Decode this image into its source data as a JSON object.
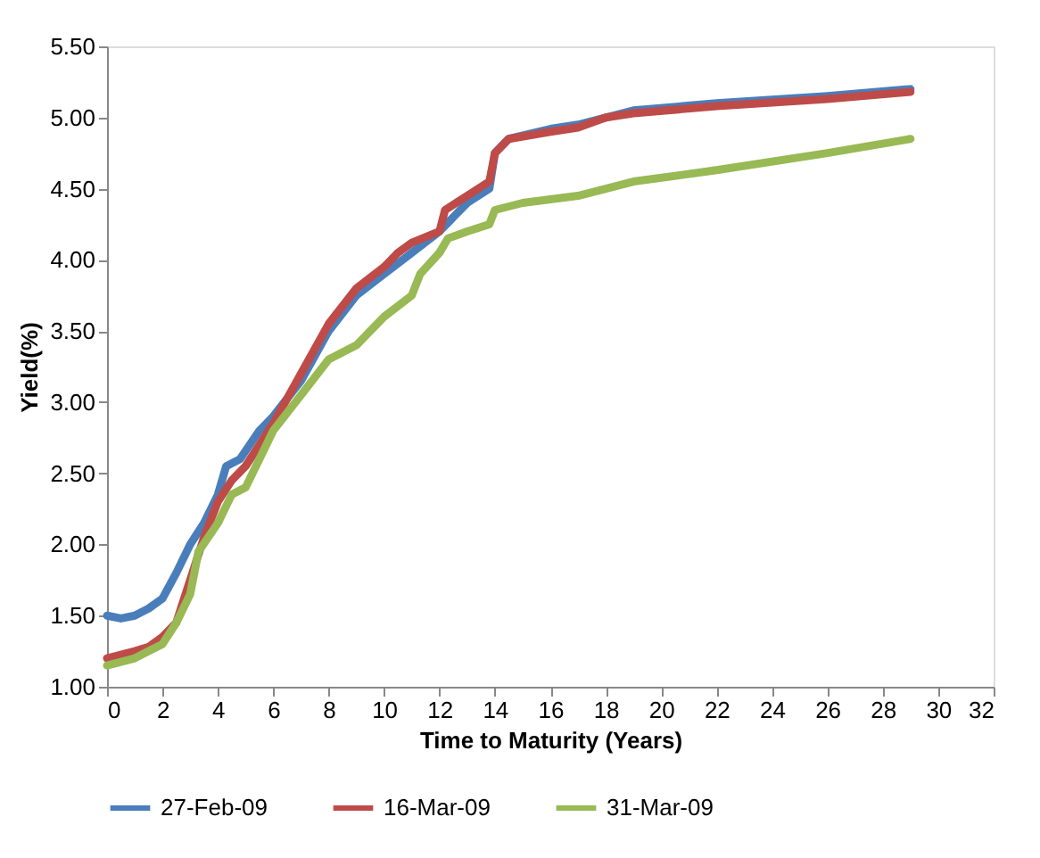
{
  "chart_data": {
    "type": "line",
    "xlabel": "Time to Maturity (Years)",
    "ylabel": "Yield(%)",
    "xlim": [
      0,
      32
    ],
    "xticks": [
      0,
      2,
      4,
      6,
      8,
      10,
      12,
      14,
      16,
      18,
      20,
      22,
      24,
      26,
      28,
      30,
      32
    ],
    "ylim": [
      1,
      5.5
    ],
    "yticks": [
      {
        "value": 1,
        "label": "1.00"
      },
      {
        "value": 1.5,
        "label": "1.50"
      },
      {
        "value": 2,
        "label": "2.00"
      },
      {
        "value": 2.5,
        "label": "2.50"
      },
      {
        "value": 3,
        "label": "3.00"
      },
      {
        "value": 3.5,
        "label": "3.50"
      },
      {
        "value": 4,
        "label": "4.00"
      },
      {
        "value": 4.5,
        "label": "4.50"
      },
      {
        "value": 5,
        "label": "5.00"
      },
      {
        "value": 5.5,
        "label": "5.50"
      }
    ],
    "grid": false,
    "legend": "bottom",
    "marker": "none",
    "line_style": "solid",
    "series": [
      {
        "name": "27-Feb-09",
        "color": "#4a7ebb",
        "x": [
          0,
          0.5,
          1,
          1.5,
          2,
          2.5,
          3,
          3.5,
          4,
          4.3,
          4.8,
          5.5,
          6,
          7,
          8,
          9,
          10,
          11,
          12,
          12.5,
          13,
          13.8,
          14,
          14.5,
          16,
          17,
          18,
          19,
          22,
          26,
          29
        ],
        "values": [
          1.5,
          1.48,
          1.5,
          1.55,
          1.62,
          1.8,
          2.0,
          2.15,
          2.35,
          2.55,
          2.6,
          2.8,
          2.9,
          3.15,
          3.5,
          3.75,
          3.9,
          4.05,
          4.2,
          4.3,
          4.4,
          4.5,
          4.75,
          4.85,
          4.92,
          4.95,
          5.0,
          5.05,
          5.1,
          5.15,
          5.2
        ]
      },
      {
        "name": "16-Mar-09",
        "color": "#be4b48",
        "x": [
          0,
          1,
          1.5,
          2,
          2.5,
          3,
          3.5,
          4,
          4.5,
          5,
          5.5,
          6,
          7,
          8,
          9,
          10,
          10.5,
          11,
          12,
          12.2,
          13,
          13.8,
          14,
          14.5,
          16,
          17,
          18,
          19,
          22,
          26,
          29
        ],
        "values": [
          1.2,
          1.25,
          1.28,
          1.35,
          1.45,
          1.75,
          2.05,
          2.3,
          2.45,
          2.55,
          2.7,
          2.85,
          3.2,
          3.55,
          3.8,
          3.95,
          4.05,
          4.12,
          4.2,
          4.35,
          4.45,
          4.55,
          4.75,
          4.85,
          4.9,
          4.93,
          5.0,
          5.03,
          5.08,
          5.13,
          5.18
        ]
      },
      {
        "name": "31-Mar-09",
        "color": "#98b954",
        "x": [
          0,
          1,
          1.5,
          2,
          2.5,
          3,
          3.3,
          4,
          4.5,
          5,
          5.5,
          6,
          7,
          8,
          9,
          10,
          11,
          11.3,
          12,
          12.3,
          13,
          13.8,
          14,
          15,
          17,
          18,
          19,
          22,
          26,
          29
        ],
        "values": [
          1.15,
          1.2,
          1.25,
          1.3,
          1.45,
          1.65,
          1.95,
          2.15,
          2.35,
          2.4,
          2.6,
          2.8,
          3.05,
          3.3,
          3.4,
          3.6,
          3.75,
          3.9,
          4.05,
          4.15,
          4.2,
          4.25,
          4.35,
          4.4,
          4.45,
          4.5,
          4.55,
          4.63,
          4.75,
          4.85
        ]
      }
    ]
  }
}
